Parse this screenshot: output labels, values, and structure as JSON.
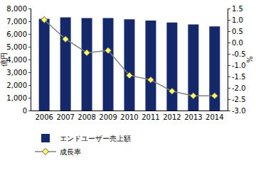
{
  "chart_data": {
    "type": "bar",
    "categories": [
      "2006",
      "2007",
      "2008",
      "2009",
      "2010",
      "2011",
      "2012",
      "2013",
      "2014"
    ],
    "series": [
      {
        "name": "エンドユーザー売上額",
        "type": "bar",
        "color": "#14286a",
        "values": [
          7200,
          7300,
          7250,
          7250,
          7150,
          7050,
          6900,
          6750,
          6600
        ]
      },
      {
        "name": "成長率",
        "type": "line",
        "axis": "y2",
        "color": "#ffff66",
        "marker": "diamond",
        "values": [
          1.0,
          0.15,
          -0.45,
          -0.35,
          -1.45,
          -1.65,
          -2.15,
          -2.35,
          -2.35
        ]
      }
    ],
    "y_label": "億円",
    "y2_label": "%",
    "ylim": [
      0,
      8000
    ],
    "yticks": [
      0,
      {
        "value": 1000,
        "label": "1,000"
      },
      {
        "value": 2000,
        "label": "2,000"
      },
      {
        "value": 3000,
        "label": "3,000"
      },
      {
        "value": 4000,
        "label": "4,000"
      },
      {
        "value": 5000,
        "label": "5,000"
      },
      {
        "value": 6000,
        "label": "6,000"
      },
      {
        "value": 7000,
        "label": "7,000"
      },
      {
        "value": 8000,
        "label": "8,000"
      }
    ],
    "y2lim": [
      -3.0,
      1.5
    ],
    "y2ticks": [
      {
        "value": -3,
        "label": "-3.0"
      },
      -2.5,
      {
        "value": -2,
        "label": "-2.0"
      },
      -1.5,
      {
        "value": -1,
        "label": "-1.0"
      },
      -0.5,
      {
        "value": 0,
        "label": "0.0"
      },
      0.5,
      {
        "value": 1,
        "label": "1.0"
      },
      1.5
    ],
    "grid": false,
    "legend": "bottom"
  }
}
